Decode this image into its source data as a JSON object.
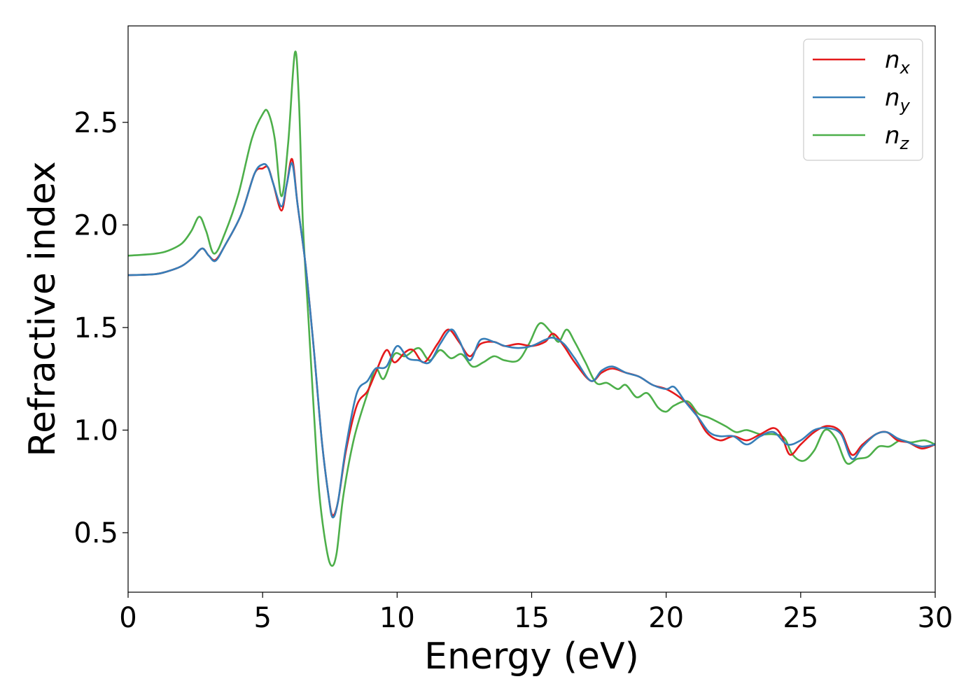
{
  "chart_data": {
    "type": "line",
    "xlabel": "Energy (eV)",
    "ylabel": "Refractive index",
    "xlim": [
      0,
      30
    ],
    "ylim": [
      0.21,
      2.97
    ],
    "xticks": [
      "0",
      "5",
      "10",
      "15",
      "20",
      "25",
      "30"
    ],
    "yticks": [
      "0.5",
      "1.0",
      "1.5",
      "2.0",
      "2.5"
    ],
    "legend_position": "top-right",
    "grid": false,
    "series": [
      {
        "name": "n_x",
        "label_main": "n",
        "label_sub": "x",
        "color": "#e41a1c",
        "points": [
          [
            0,
            1.755
          ],
          [
            1,
            1.76
          ],
          [
            1.5,
            1.775
          ],
          [
            2,
            1.8
          ],
          [
            2.4,
            1.84
          ],
          [
            2.75,
            1.885
          ],
          [
            3,
            1.85
          ],
          [
            3.25,
            1.83
          ],
          [
            3.6,
            1.9
          ],
          [
            4.2,
            2.05
          ],
          [
            4.7,
            2.25
          ],
          [
            5,
            2.275
          ],
          [
            5.2,
            2.28
          ],
          [
            5.4,
            2.2
          ],
          [
            5.7,
            2.07
          ],
          [
            5.9,
            2.2
          ],
          [
            6.1,
            2.32
          ],
          [
            6.3,
            2.1
          ],
          [
            6.6,
            1.8
          ],
          [
            6.9,
            1.4
          ],
          [
            7.2,
            0.95
          ],
          [
            7.45,
            0.68
          ],
          [
            7.6,
            0.585
          ],
          [
            7.8,
            0.65
          ],
          [
            8.1,
            0.9
          ],
          [
            8.5,
            1.12
          ],
          [
            8.9,
            1.19
          ],
          [
            9.2,
            1.28
          ],
          [
            9.6,
            1.39
          ],
          [
            9.9,
            1.33
          ],
          [
            10.3,
            1.38
          ],
          [
            10.6,
            1.39
          ],
          [
            11,
            1.33
          ],
          [
            11.5,
            1.42
          ],
          [
            11.9,
            1.49
          ],
          [
            12.3,
            1.43
          ],
          [
            12.7,
            1.36
          ],
          [
            13.1,
            1.42
          ],
          [
            13.6,
            1.43
          ],
          [
            14,
            1.41
          ],
          [
            14.5,
            1.42
          ],
          [
            15,
            1.41
          ],
          [
            15.5,
            1.43
          ],
          [
            15.8,
            1.47
          ],
          [
            16.2,
            1.41
          ],
          [
            16.6,
            1.33
          ],
          [
            17.2,
            1.24
          ],
          [
            17.6,
            1.28
          ],
          [
            18,
            1.3
          ],
          [
            18.5,
            1.28
          ],
          [
            19,
            1.26
          ],
          [
            19.5,
            1.22
          ],
          [
            20,
            1.2
          ],
          [
            20.5,
            1.16
          ],
          [
            21,
            1.1
          ],
          [
            21.5,
            0.99
          ],
          [
            22,
            0.95
          ],
          [
            22.5,
            0.97
          ],
          [
            23,
            0.95
          ],
          [
            23.5,
            0.98
          ],
          [
            24,
            1.01
          ],
          [
            24.3,
            0.97
          ],
          [
            24.6,
            0.88
          ],
          [
            25,
            0.93
          ],
          [
            25.5,
            0.99
          ],
          [
            26,
            1.02
          ],
          [
            26.5,
            0.99
          ],
          [
            26.9,
            0.88
          ],
          [
            27.3,
            0.93
          ],
          [
            27.8,
            0.98
          ],
          [
            28.2,
            0.99
          ],
          [
            28.6,
            0.95
          ],
          [
            29,
            0.94
          ],
          [
            29.5,
            0.91
          ],
          [
            30,
            0.93
          ]
        ]
      },
      {
        "name": "n_y",
        "label_main": "n",
        "label_sub": "y",
        "color": "#377eb8",
        "points": [
          [
            0,
            1.755
          ],
          [
            1,
            1.76
          ],
          [
            1.5,
            1.775
          ],
          [
            2,
            1.8
          ],
          [
            2.4,
            1.84
          ],
          [
            2.75,
            1.885
          ],
          [
            3,
            1.85
          ],
          [
            3.25,
            1.825
          ],
          [
            3.6,
            1.9
          ],
          [
            4.2,
            2.05
          ],
          [
            4.7,
            2.25
          ],
          [
            5,
            2.295
          ],
          [
            5.2,
            2.28
          ],
          [
            5.4,
            2.2
          ],
          [
            5.7,
            2.09
          ],
          [
            5.9,
            2.2
          ],
          [
            6.1,
            2.3
          ],
          [
            6.3,
            2.1
          ],
          [
            6.6,
            1.8
          ],
          [
            6.9,
            1.4
          ],
          [
            7.2,
            0.95
          ],
          [
            7.45,
            0.68
          ],
          [
            7.6,
            0.575
          ],
          [
            7.8,
            0.65
          ],
          [
            8.1,
            0.92
          ],
          [
            8.5,
            1.18
          ],
          [
            8.9,
            1.24
          ],
          [
            9.2,
            1.3
          ],
          [
            9.6,
            1.31
          ],
          [
            10,
            1.41
          ],
          [
            10.4,
            1.35
          ],
          [
            10.8,
            1.34
          ],
          [
            11.2,
            1.33
          ],
          [
            11.6,
            1.42
          ],
          [
            12,
            1.49
          ],
          [
            12.3,
            1.44
          ],
          [
            12.7,
            1.34
          ],
          [
            13.1,
            1.44
          ],
          [
            13.6,
            1.43
          ],
          [
            14,
            1.41
          ],
          [
            14.5,
            1.4
          ],
          [
            15,
            1.41
          ],
          [
            15.5,
            1.44
          ],
          [
            15.8,
            1.45
          ],
          [
            16.2,
            1.42
          ],
          [
            16.6,
            1.35
          ],
          [
            17.2,
            1.24
          ],
          [
            17.6,
            1.29
          ],
          [
            18,
            1.31
          ],
          [
            18.5,
            1.28
          ],
          [
            19,
            1.26
          ],
          [
            19.5,
            1.22
          ],
          [
            20,
            1.2
          ],
          [
            20.3,
            1.21
          ],
          [
            20.7,
            1.14
          ],
          [
            21.2,
            1.06
          ],
          [
            21.6,
            0.99
          ],
          [
            22,
            0.97
          ],
          [
            22.5,
            0.97
          ],
          [
            23,
            0.93
          ],
          [
            23.5,
            0.97
          ],
          [
            24,
            0.99
          ],
          [
            24.5,
            0.93
          ],
          [
            25,
            0.95
          ],
          [
            25.5,
            1
          ],
          [
            26,
            1.01
          ],
          [
            26.5,
            0.98
          ],
          [
            26.9,
            0.86
          ],
          [
            27.3,
            0.92
          ],
          [
            27.8,
            0.98
          ],
          [
            28.2,
            0.99
          ],
          [
            28.6,
            0.96
          ],
          [
            29,
            0.94
          ],
          [
            29.5,
            0.92
          ],
          [
            30,
            0.93
          ]
        ]
      },
      {
        "name": "n_z",
        "label_main": "n",
        "label_sub": "z",
        "color": "#4daf4a",
        "points": [
          [
            0,
            1.85
          ],
          [
            1,
            1.86
          ],
          [
            1.5,
            1.875
          ],
          [
            2,
            1.91
          ],
          [
            2.35,
            1.97
          ],
          [
            2.65,
            2.04
          ],
          [
            2.9,
            1.97
          ],
          [
            3.2,
            1.86
          ],
          [
            3.6,
            1.96
          ],
          [
            4.1,
            2.15
          ],
          [
            4.6,
            2.42
          ],
          [
            5,
            2.54
          ],
          [
            5.2,
            2.55
          ],
          [
            5.45,
            2.42
          ],
          [
            5.7,
            2.14
          ],
          [
            5.95,
            2.4
          ],
          [
            6.2,
            2.84
          ],
          [
            6.35,
            2.6
          ],
          [
            6.5,
            2.0
          ],
          [
            6.7,
            1.55
          ],
          [
            6.9,
            1.1
          ],
          [
            7.1,
            0.7
          ],
          [
            7.35,
            0.44
          ],
          [
            7.55,
            0.34
          ],
          [
            7.75,
            0.4
          ],
          [
            8,
            0.68
          ],
          [
            8.4,
            0.96
          ],
          [
            8.9,
            1.18
          ],
          [
            9.2,
            1.3
          ],
          [
            9.5,
            1.25
          ],
          [
            9.9,
            1.37
          ],
          [
            10.3,
            1.36
          ],
          [
            10.8,
            1.4
          ],
          [
            11.2,
            1.34
          ],
          [
            11.6,
            1.39
          ],
          [
            12,
            1.35
          ],
          [
            12.4,
            1.37
          ],
          [
            12.8,
            1.31
          ],
          [
            13.2,
            1.33
          ],
          [
            13.6,
            1.36
          ],
          [
            14,
            1.34
          ],
          [
            14.5,
            1.34
          ],
          [
            14.9,
            1.42
          ],
          [
            15.3,
            1.52
          ],
          [
            15.7,
            1.48
          ],
          [
            16,
            1.43
          ],
          [
            16.3,
            1.49
          ],
          [
            16.6,
            1.43
          ],
          [
            17,
            1.33
          ],
          [
            17.4,
            1.23
          ],
          [
            17.8,
            1.23
          ],
          [
            18.2,
            1.2
          ],
          [
            18.5,
            1.22
          ],
          [
            18.9,
            1.16
          ],
          [
            19.3,
            1.18
          ],
          [
            19.7,
            1.11
          ],
          [
            20,
            1.09
          ],
          [
            20.3,
            1.12
          ],
          [
            20.8,
            1.14
          ],
          [
            21.2,
            1.08
          ],
          [
            21.6,
            1.06
          ],
          [
            22.2,
            1.02
          ],
          [
            22.6,
            0.99
          ],
          [
            23,
            1
          ],
          [
            23.5,
            0.98
          ],
          [
            24,
            0.98
          ],
          [
            24.4,
            0.96
          ],
          [
            24.7,
            0.88
          ],
          [
            25.1,
            0.85
          ],
          [
            25.5,
            0.9
          ],
          [
            25.9,
            1
          ],
          [
            26.3,
            0.96
          ],
          [
            26.7,
            0.84
          ],
          [
            27.1,
            0.86
          ],
          [
            27.5,
            0.87
          ],
          [
            27.9,
            0.92
          ],
          [
            28.3,
            0.92
          ],
          [
            28.7,
            0.95
          ],
          [
            29.1,
            0.94
          ],
          [
            29.6,
            0.95
          ],
          [
            30,
            0.93
          ]
        ]
      }
    ]
  }
}
